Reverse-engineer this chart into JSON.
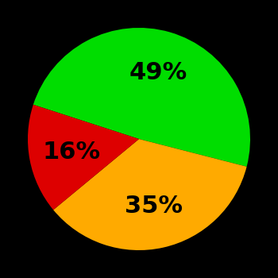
{
  "slices": [
    49,
    35,
    16
  ],
  "labels": [
    "49%",
    "35%",
    "16%"
  ],
  "colors": [
    "#00dd00",
    "#ffaa00",
    "#dd0000"
  ],
  "background_color": "#000000",
  "startangle": 162,
  "figsize": [
    3.5,
    3.5
  ],
  "dpi": 100,
  "label_fontsize": 22,
  "label_fontweight": "bold",
  "label_color": "#000000"
}
